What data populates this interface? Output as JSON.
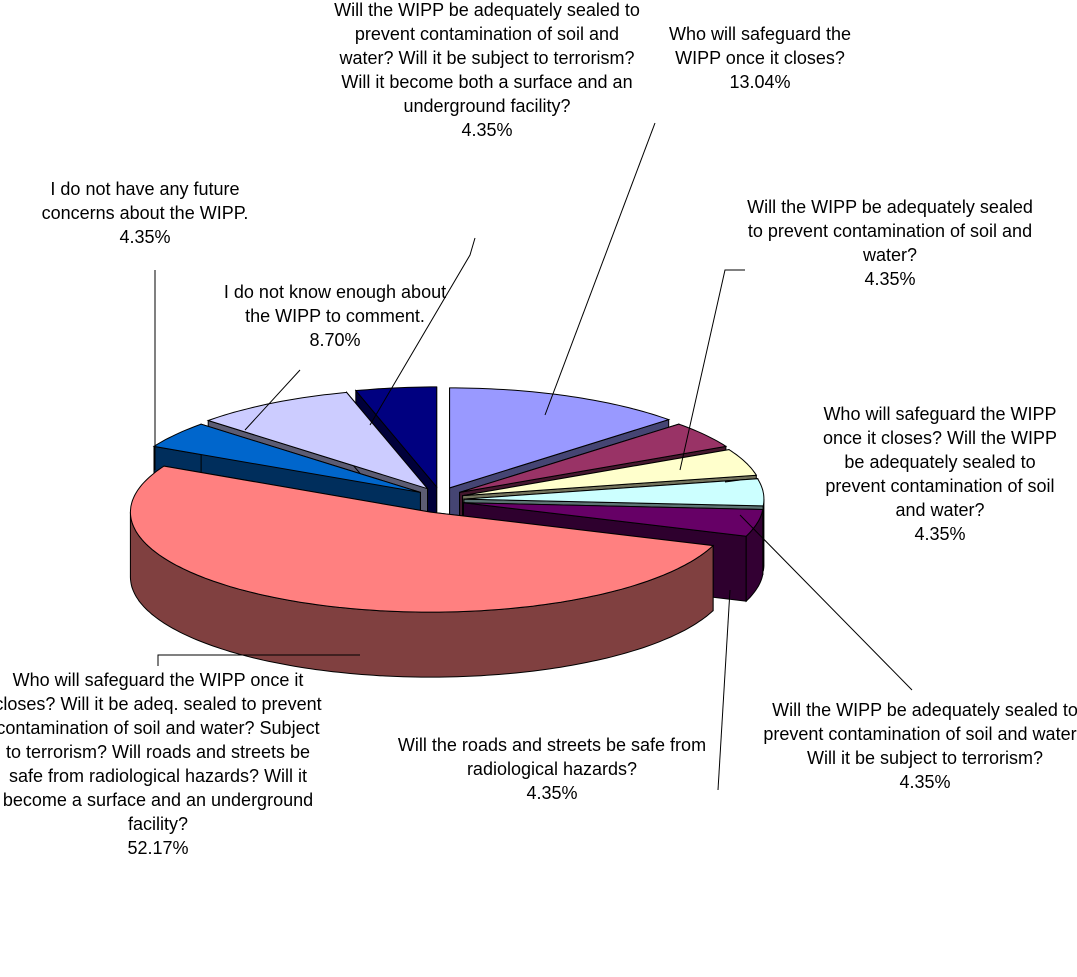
{
  "chart_data": {
    "type": "pie",
    "categories": [
      "Who will safeguard the WIPP once it closes?",
      "Will the WIPP be adequately sealed to prevent contamination of soil and water?",
      "Who will safeguard the WIPP once it closes?  Will the WIPP be adequately sealed to prevent contamination of soil and water?",
      "Will the WIPP be adequately sealed to prevent contamination of soil and water?  Will it be subject to terrorism?",
      "Will the roads and streets be safe from radiological hazards?",
      "Who will safeguard the WIPP once it closes?  Will it be adeq. sealed to prevent contamination of soil and water?  Subject to terrorism? Will roads and streets be safe from radiological hazards? Will it become a surface and an underground facility?",
      "I do not have any future concerns about the WIPP.",
      "I do not know enough about the WIPP to comment.",
      "Will the WIPP be adequately sealed to prevent contamination of soil and water?  Will it be subject to terrorism? Will it become both a surface and an underground facility?"
    ],
    "values": [
      13.04,
      4.35,
      4.35,
      4.35,
      4.35,
      52.17,
      4.35,
      8.7,
      4.35
    ],
    "value_labels": [
      "13.04%",
      "4.35%",
      "4.35%",
      "4.35%",
      "4.35%",
      "52.17%",
      "4.35%",
      "8.70%",
      "4.35%"
    ],
    "colors": [
      "#9999ff",
      "#993366",
      "#ffffcc",
      "#ccffff",
      "#660066",
      "#ff8080",
      "#0066cc",
      "#ccccff",
      "#000080"
    ]
  }
}
